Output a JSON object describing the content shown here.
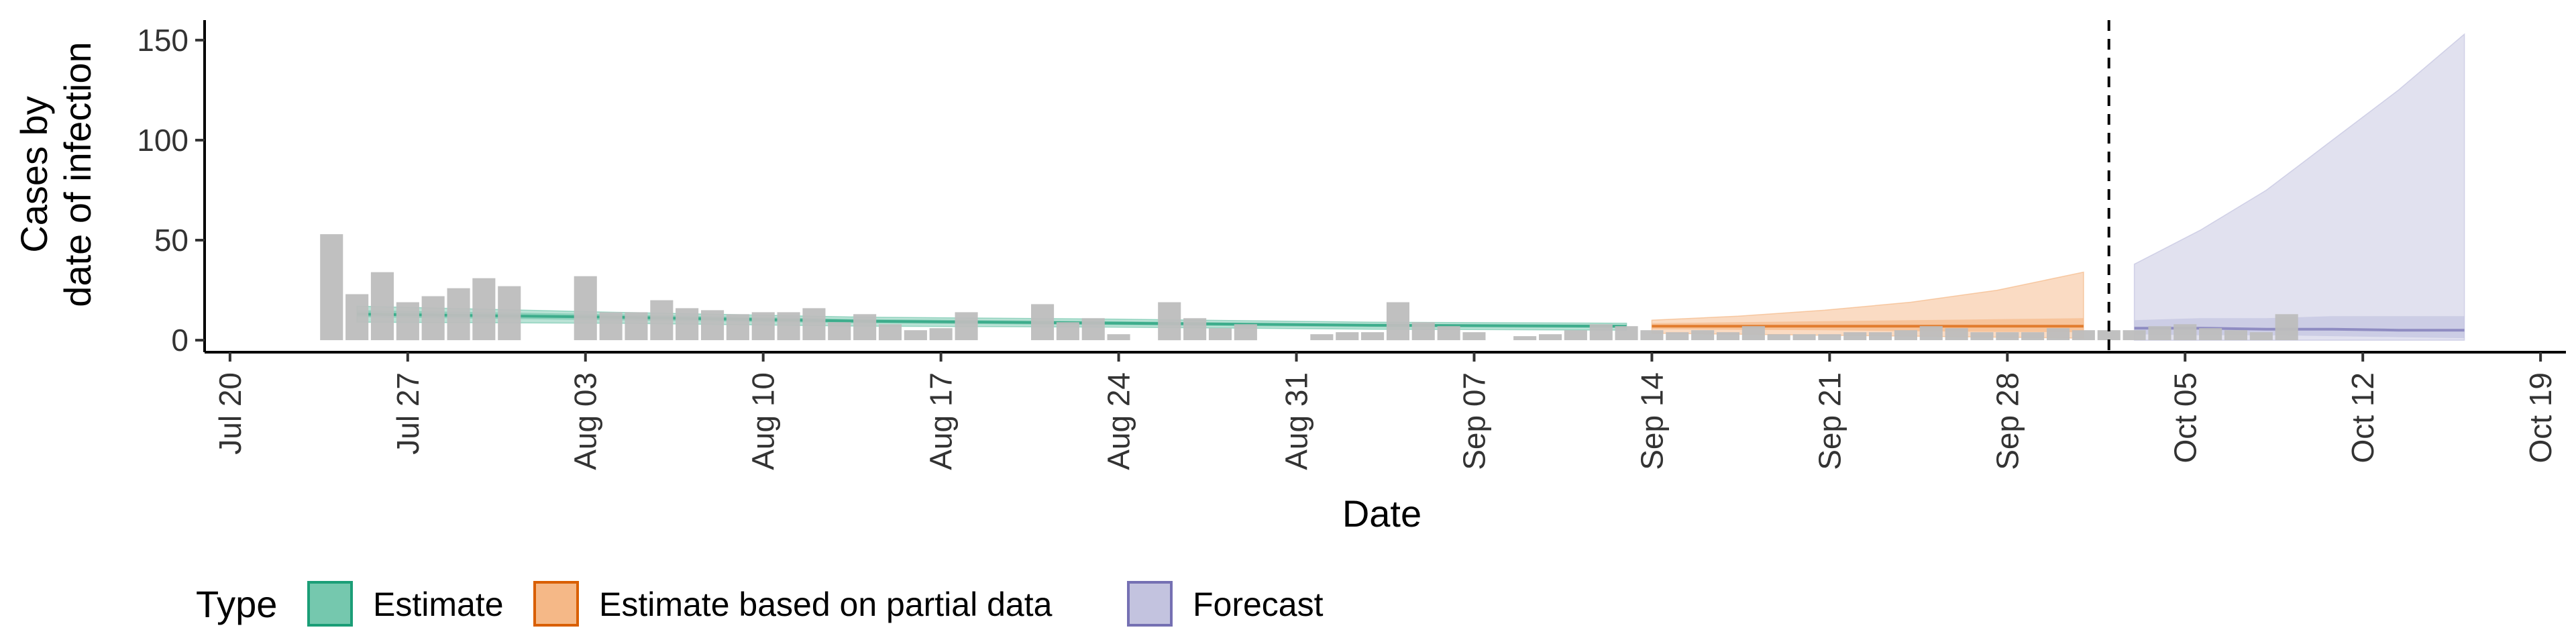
{
  "chart_data": {
    "type": "bar",
    "title": "",
    "xlabel": "Date",
    "ylabel_lines": [
      "Cases by",
      "date of infection"
    ],
    "ylim": [
      -6,
      160
    ],
    "yticks": [
      0,
      50,
      100,
      150
    ],
    "xlim": [
      "2020-07-19",
      "2020-10-20"
    ],
    "xticks": [
      {
        "date": "2020-07-20",
        "label": "Jul 20"
      },
      {
        "date": "2020-07-27",
        "label": "Jul 27"
      },
      {
        "date": "2020-08-03",
        "label": "Aug 03"
      },
      {
        "date": "2020-08-10",
        "label": "Aug 10"
      },
      {
        "date": "2020-08-17",
        "label": "Aug 17"
      },
      {
        "date": "2020-08-24",
        "label": "Aug 24"
      },
      {
        "date": "2020-08-31",
        "label": "Aug 31"
      },
      {
        "date": "2020-09-07",
        "label": "Sep 07"
      },
      {
        "date": "2020-09-14",
        "label": "Sep 14"
      },
      {
        "date": "2020-09-21",
        "label": "Sep 21"
      },
      {
        "date": "2020-09-28",
        "label": "Sep 28"
      },
      {
        "date": "2020-10-05",
        "label": "Oct 05"
      },
      {
        "date": "2020-10-12",
        "label": "Oct 12"
      },
      {
        "date": "2020-10-19",
        "label": "Oct 19"
      }
    ],
    "grid": false,
    "bar_color": "#bdbdbd",
    "bars": {
      "start_date": "2020-07-24",
      "values": [
        53,
        23,
        34,
        19,
        22,
        26,
        31,
        27,
        0,
        0,
        32,
        14,
        14,
        20,
        16,
        15,
        13,
        14,
        14,
        16,
        9,
        13,
        8,
        5,
        6,
        14,
        0,
        0,
        18,
        9,
        11,
        3,
        0,
        19,
        11,
        6,
        8,
        0,
        0,
        3,
        4,
        4,
        19,
        9,
        7,
        4,
        0,
        2,
        3,
        5,
        8,
        7,
        5,
        4,
        5,
        4,
        7,
        3,
        3,
        3,
        4,
        4,
        5,
        7,
        6,
        4,
        4,
        4,
        6,
        5,
        5,
        5,
        7,
        8,
        6,
        5,
        4,
        13
      ]
    },
    "vline_date": "2020-10-02",
    "legend_title": "Type",
    "legend_position": "bottom",
    "series": [
      {
        "name": "Estimate",
        "color": "#1b9e77",
        "fill": "#66c2a5",
        "x_start": "2020-07-25",
        "x_end": "2020-09-13",
        "upper": [
          17,
          14,
          11.5,
          10.5,
          9,
          8.5
        ],
        "upper_inner": [
          15,
          13,
          10.5,
          9.5,
          8,
          7.5
        ],
        "median": [
          13,
          11.5,
          9.5,
          8.5,
          7.5,
          7
        ],
        "lower_inner": [
          11.5,
          10,
          8.5,
          7.5,
          6.5,
          6
        ],
        "lower": [
          9,
          8.5,
          7,
          6.5,
          5.5,
          5
        ]
      },
      {
        "name": "Estimate based on partial data",
        "color": "#d95f02",
        "fill": "#f4b07a",
        "x_start": "2020-09-14",
        "x_end": "2020-10-01",
        "upper": [
          10,
          12,
          15,
          19,
          25,
          34
        ],
        "upper_inner": [
          8.5,
          9,
          9.5,
          10,
          10.5,
          11
        ],
        "median": [
          7,
          7,
          7,
          7,
          7,
          7
        ],
        "lower_inner": [
          5.5,
          5.2,
          5,
          4.5,
          4.2,
          4
        ],
        "lower": [
          3.5,
          3,
          2.5,
          2,
          1.5,
          1
        ]
      },
      {
        "name": "Forecast",
        "color": "#7570b3",
        "fill": "#bcbddc",
        "x_start": "2020-10-03",
        "x_end": "2020-10-16",
        "upper": [
          38,
          55,
          75,
          100,
          125,
          153
        ],
        "upper_inner": [
          10,
          11,
          11,
          12,
          12,
          12
        ],
        "median": [
          6,
          6,
          5.5,
          5.5,
          5,
          5
        ],
        "lower_inner": [
          3,
          2.5,
          2.5,
          2,
          1.5,
          1
        ],
        "lower": [
          0,
          0,
          0,
          0,
          0,
          0
        ]
      }
    ]
  }
}
